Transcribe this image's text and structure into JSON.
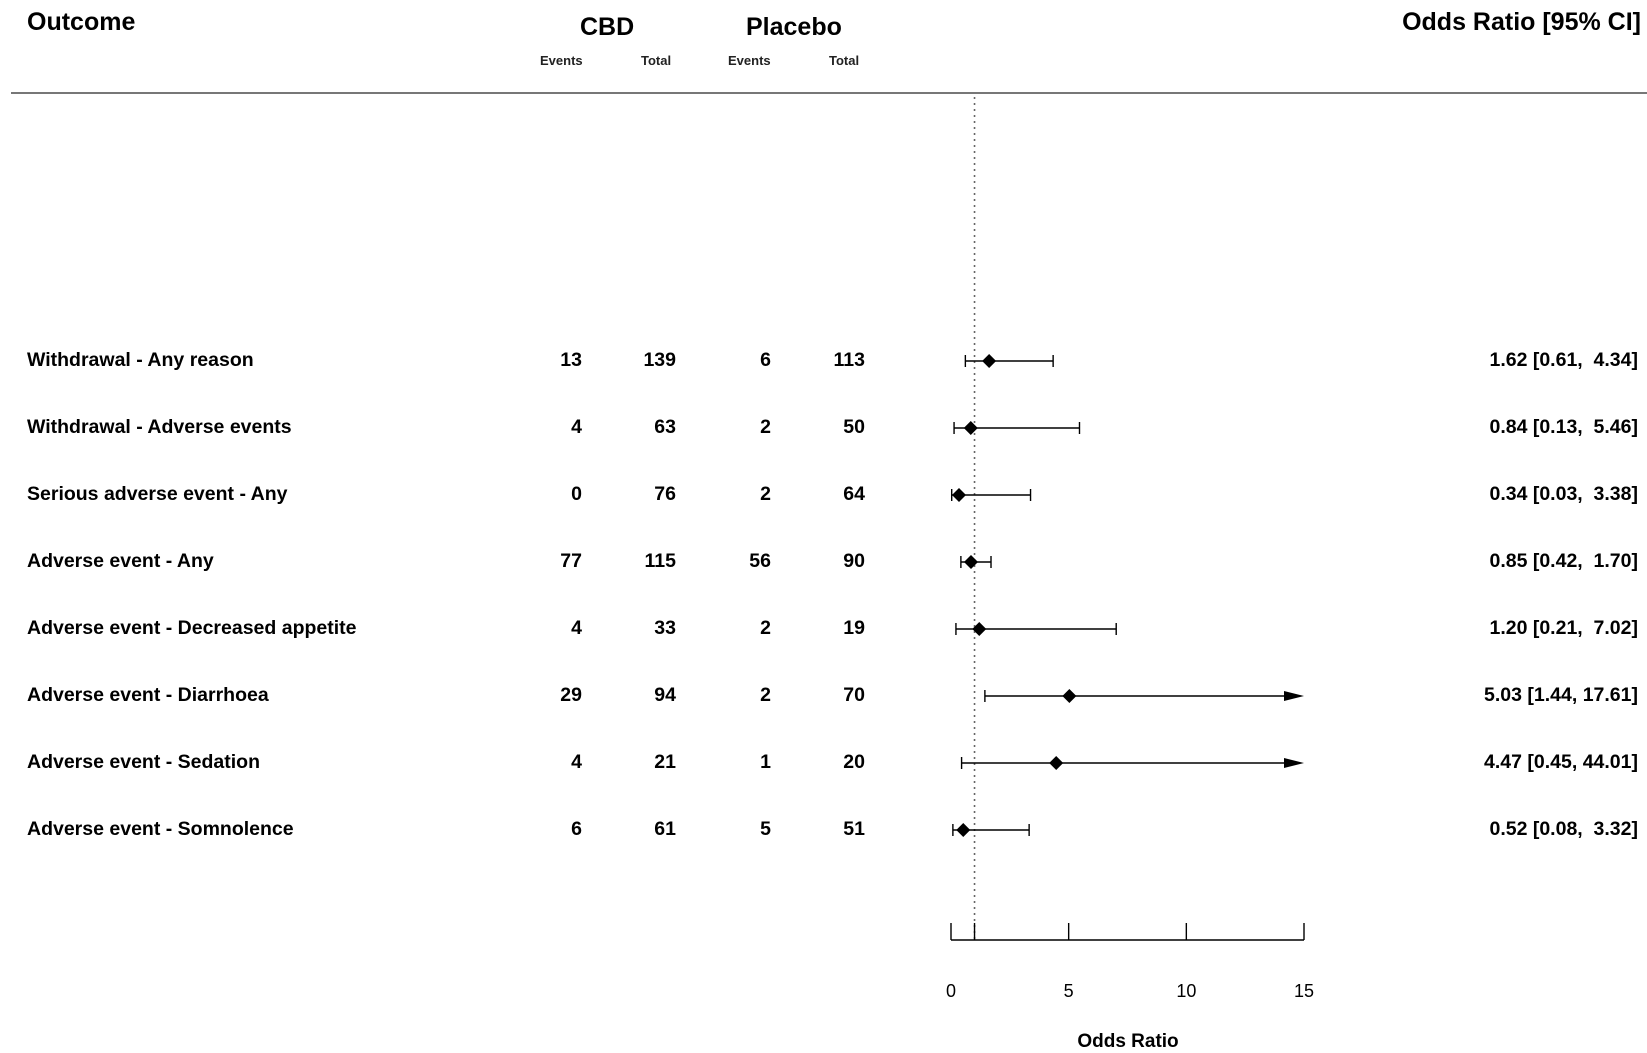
{
  "headers": {
    "outcome": "Outcome",
    "cbd": "CBD",
    "placebo": "Placebo",
    "cbd_events": "Events",
    "cbd_total": "Total",
    "placebo_events": "Events",
    "placebo_total": "Total",
    "effect": "Odds Ratio [95% CI]"
  },
  "chart_data": {
    "type": "forest",
    "xlabel": "Odds Ratio",
    "xlim": [
      0,
      15
    ],
    "xticks": [
      "0",
      "5",
      "10",
      "15"
    ],
    "reference_line": 1,
    "rows": [
      {
        "outcome": "Withdrawal - Any reason",
        "cbd_events": "13",
        "cbd_total": "139",
        "placebo_events": "6",
        "placebo_total": "113",
        "or": 1.62,
        "lo": 0.61,
        "hi": 4.34,
        "label": "1.62 [0.61,  4.34]"
      },
      {
        "outcome": "Withdrawal - Adverse events",
        "cbd_events": "4",
        "cbd_total": "63",
        "placebo_events": "2",
        "placebo_total": "50",
        "or": 0.84,
        "lo": 0.13,
        "hi": 5.46,
        "label": "0.84 [0.13,  5.46]"
      },
      {
        "outcome": "Serious adverse event - Any",
        "cbd_events": "0",
        "cbd_total": "76",
        "placebo_events": "2",
        "placebo_total": "64",
        "or": 0.34,
        "lo": 0.03,
        "hi": 3.38,
        "label": "0.34 [0.03,  3.38]"
      },
      {
        "outcome": "Adverse event - Any",
        "cbd_events": "77",
        "cbd_total": "115",
        "placebo_events": "56",
        "placebo_total": "90",
        "or": 0.85,
        "lo": 0.42,
        "hi": 1.7,
        "label": "0.85 [0.42,  1.70]"
      },
      {
        "outcome": "Adverse event - Decreased appetite",
        "cbd_events": "4",
        "cbd_total": "33",
        "placebo_events": "2",
        "placebo_total": "19",
        "or": 1.2,
        "lo": 0.21,
        "hi": 7.02,
        "label": "1.20 [0.21,  7.02]"
      },
      {
        "outcome": "Adverse event - Diarrhoea",
        "cbd_events": "29",
        "cbd_total": "94",
        "placebo_events": "2",
        "placebo_total": "70",
        "or": 5.03,
        "lo": 1.44,
        "hi": 17.61,
        "label": "5.03 [1.44, 17.61]"
      },
      {
        "outcome": "Adverse event - Sedation",
        "cbd_events": "4",
        "cbd_total": "21",
        "placebo_events": "1",
        "placebo_total": "20",
        "or": 4.47,
        "lo": 0.45,
        "hi": 44.01,
        "label": "4.47 [0.45, 44.01]"
      },
      {
        "outcome": "Adverse event - Somnolence",
        "cbd_events": "6",
        "cbd_total": "61",
        "placebo_events": "5",
        "placebo_total": "51",
        "or": 0.52,
        "lo": 0.08,
        "hi": 3.32,
        "label": "0.52 [0.08,  3.32]"
      }
    ]
  }
}
